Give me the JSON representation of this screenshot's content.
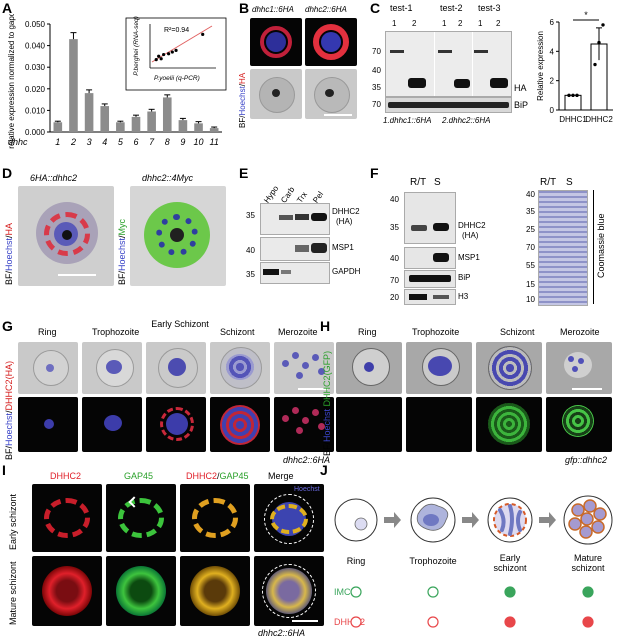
{
  "panels": {
    "A": "A",
    "B": "B",
    "C": "C",
    "D": "D",
    "E": "E",
    "F": "F",
    "G": "G",
    "H": "H",
    "I": "I",
    "J": "J"
  },
  "chart_data": [
    {
      "type": "bar",
      "panel": "A",
      "ylabel": "relative expression normalized to gapdh",
      "xlabel_prefix": "dhhc",
      "categories": [
        "1",
        "2",
        "3",
        "4",
        "5",
        "6",
        "7",
        "8",
        "9",
        "10",
        "11"
      ],
      "values": [
        0.0045,
        0.043,
        0.018,
        0.012,
        0.0045,
        0.007,
        0.0095,
        0.016,
        0.0055,
        0.004,
        0.0018
      ],
      "errors": [
        0.0005,
        0.003,
        0.0015,
        0.001,
        0.0005,
        0.0008,
        0.001,
        0.0012,
        0.0008,
        0.0008,
        0.0005
      ],
      "ylim": [
        0,
        0.05
      ],
      "yticks": [
        "0.000",
        "0.010",
        "0.020",
        "0.030",
        "0.040",
        "0.050"
      ],
      "inset": {
        "type": "scatter",
        "annotation": "R²=0.94",
        "xlabel": "P.yoelii (q-PCR)",
        "ylabel": "P.berghei (RNA-seq)",
        "x": [
          0.1,
          0.14,
          0.18,
          0.22,
          0.3,
          0.36,
          0.42,
          0.85
        ],
        "y": [
          0.2,
          0.28,
          0.22,
          0.32,
          0.34,
          0.38,
          0.42,
          0.8
        ]
      }
    },
    {
      "type": "bar",
      "panel": "C-right",
      "ylabel": "Relative expression",
      "categories": [
        "DHHC1",
        "DHHC2"
      ],
      "values": [
        1.0,
        4.5
      ],
      "errors": [
        0.0,
        1.1
      ],
      "points": [
        [
          1.0,
          1.0,
          1.0
        ],
        [
          3.1,
          4.6,
          5.8
        ]
      ],
      "ylim": [
        0,
        6
      ],
      "yticks": [
        "0",
        "2",
        "4",
        "6"
      ],
      "significance": "*"
    }
  ],
  "B": {
    "col1": "dhhc1::6HA",
    "col2": "dhhc2::6HA",
    "ylabel_parts": [
      "BF/",
      "Hoechst",
      "/",
      "HA"
    ]
  },
  "C": {
    "tests": [
      "test-1",
      "test-2",
      "test-3"
    ],
    "lanes": [
      "1",
      "2"
    ],
    "mw": [
      "70",
      "40",
      "35",
      "70"
    ],
    "bands": [
      "HA",
      "BiP"
    ],
    "legend": [
      "1.dhhc1::6HA",
      "2.dhhc2::6HA"
    ]
  },
  "D": {
    "col1": "6HA::dhhc2",
    "col2": "dhhc2::4Myc",
    "ylabel1_parts": [
      "BF/",
      "Hoechst",
      "/",
      "HA"
    ],
    "ylabel2_parts": [
      "BF/",
      "Hoechst",
      "/",
      "Myc"
    ]
  },
  "E": {
    "lanes": [
      "Hypo",
      "Carb",
      "Trx",
      "Pel"
    ],
    "mw": [
      "35",
      "40",
      "35"
    ],
    "bands": [
      "DHHC2",
      "(HA)",
      "MSP1",
      "GAPDH"
    ]
  },
  "F": {
    "lanes": [
      "R/T",
      "S"
    ],
    "mw": [
      "40",
      "35",
      "40",
      "70",
      "20",
      "40",
      "35",
      "25",
      "70",
      "55",
      "15",
      "10"
    ],
    "bands": [
      "DHHC2",
      "(HA)",
      "MSP1",
      "BiP",
      "H3"
    ],
    "stain": "Coomassie blue",
    "gel_lanes": [
      "R/T",
      "S"
    ]
  },
  "G": {
    "stages": [
      "Ring",
      "Trophozoite",
      "Early Schizont",
      "Schizont",
      "Merozoite"
    ],
    "ylabel_parts": [
      "BF/",
      "Hoechst",
      "/",
      "DHHC2(HA)"
    ],
    "strain": "dhhc2::6HA"
  },
  "H": {
    "stages": [
      "Ring",
      "Trophozoite",
      "Schizont",
      "Merozoite"
    ],
    "ylabel_parts": [
      "BF/",
      "Hoechst",
      "/",
      "DHHC2(GFP)"
    ],
    "strain": "gfp::dhhc2"
  },
  "I": {
    "cols": [
      "DHHC2",
      "GAP45",
      "DHHC2",
      "/",
      "GAP45",
      "Merge",
      "Hoechst"
    ],
    "rows": [
      "Early schizont",
      "Mature schizont"
    ],
    "strain": "dhhc2::6HA"
  },
  "J": {
    "stages": [
      "Ring",
      "Trophozoite",
      "Early schizont",
      "Mature schizont"
    ],
    "rows": [
      "IMC",
      "DHHC2"
    ],
    "colors": {
      "IMC": "#3aa55c",
      "DHHC2": "#e8474a"
    },
    "imc_filled": [
      false,
      false,
      true,
      true
    ],
    "dhhc2_filled": [
      false,
      false,
      true,
      true
    ]
  }
}
